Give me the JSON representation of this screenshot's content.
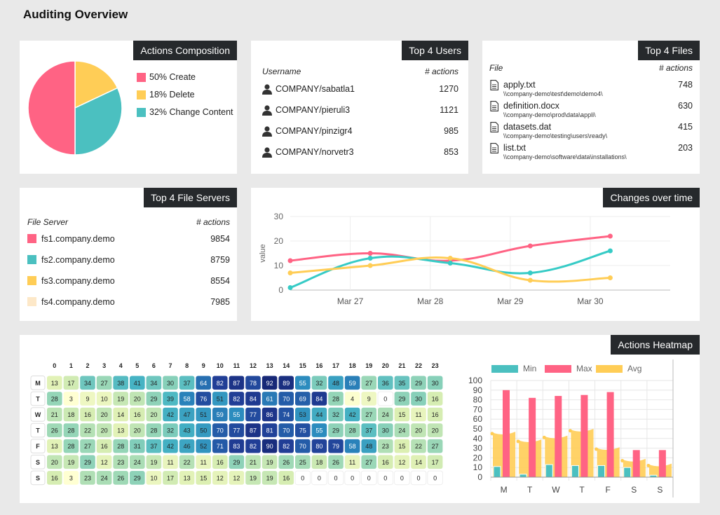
{
  "page": {
    "title": "Auditing Overview"
  },
  "composition": {
    "title": "Actions Composition",
    "items": [
      {
        "label": "50% Create",
        "value": 50,
        "color": "#ff6384"
      },
      {
        "label": "18% Delete",
        "value": 18,
        "color": "#ffcd56"
      },
      {
        "label": "32% Change Content",
        "value": 32,
        "color": "#4bc0c0"
      }
    ]
  },
  "users": {
    "title": "Top 4 Users",
    "col_name": "Username",
    "col_value": "# actions",
    "rows": [
      {
        "name": "COMPANY/sabatla1",
        "value": "1270"
      },
      {
        "name": "COMPANY/pieruli3",
        "value": "1121"
      },
      {
        "name": "COMPANY/pinzigr4",
        "value": "985"
      },
      {
        "name": "COMPANY/norvetr3",
        "value": "853"
      }
    ]
  },
  "files": {
    "title": "Top 4 Files",
    "col_name": "File",
    "col_value": "# actions",
    "rows": [
      {
        "name": "apply.txt",
        "path": "\\\\company-demo\\test\\demo\\demo4\\",
        "value": "748"
      },
      {
        "name": "definition.docx",
        "path": "\\\\company-demo\\prod\\data\\appli\\",
        "value": "630"
      },
      {
        "name": "datasets.dat",
        "path": "\\\\company-demo\\testing\\users\\ready\\",
        "value": "415"
      },
      {
        "name": "list.txt",
        "path": "\\\\company-demo\\software\\data\\installations\\",
        "value": "203"
      }
    ]
  },
  "servers": {
    "title": "Top 4 File Servers",
    "col_name": "File Server",
    "col_value": "# actions",
    "rows": [
      {
        "name": "fs1.company.demo",
        "value": "9854",
        "color": "#ff6384"
      },
      {
        "name": "fs2.company.demo",
        "value": "8759",
        "color": "#4bc0c0"
      },
      {
        "name": "fs3.company.demo",
        "value": "8554",
        "color": "#ffcd56"
      },
      {
        "name": "fs4.company.demo",
        "value": "7985",
        "color": "#fde8c8"
      }
    ]
  },
  "changes": {
    "title": "Changes over time",
    "chart_data": {
      "type": "line",
      "ylabel": "value",
      "ylim": [
        0,
        30
      ],
      "yticks": [
        "0",
        "10",
        "20",
        "30"
      ],
      "x": [
        "Mar 26 18:00",
        "Mar 27 18:00",
        "Mar 28 18:00",
        "Mar 29 18:00",
        "Mar 30 18:00"
      ],
      "xticks": [
        "Mar 27",
        "Mar 28",
        "Mar 29",
        "Mar 30"
      ],
      "series": [
        {
          "color": "#ff6384",
          "values": [
            12,
            15,
            12,
            18,
            22
          ]
        },
        {
          "color": "#36cbc6",
          "values": [
            1,
            13,
            11,
            7,
            16
          ]
        },
        {
          "color": "#ffcd56",
          "values": [
            7,
            10,
            13,
            4,
            5
          ]
        }
      ],
      "grid": true
    }
  },
  "heatmap": {
    "title": "Actions Heatmap",
    "hours": [
      "0",
      "1",
      "2",
      "3",
      "4",
      "5",
      "6",
      "7",
      "8",
      "9",
      "10",
      "11",
      "12",
      "13",
      "14",
      "15",
      "16",
      "17",
      "18",
      "19",
      "20",
      "21",
      "22",
      "23"
    ],
    "days": [
      "M",
      "T",
      "W",
      "T",
      "F",
      "S",
      "S"
    ],
    "values": [
      [
        13,
        17,
        34,
        27,
        38,
        41,
        34,
        30,
        37,
        64,
        82,
        87,
        78,
        92,
        89,
        55,
        32,
        48,
        59,
        27,
        36,
        35,
        29,
        30
      ],
      [
        28,
        3,
        9,
        10,
        19,
        20,
        29,
        39,
        58,
        76,
        51,
        82,
        84,
        61,
        70,
        69,
        84,
        28,
        4,
        9,
        0,
        29,
        30,
        16
      ],
      [
        21,
        18,
        16,
        20,
        14,
        16,
        20,
        42,
        47,
        51,
        59,
        55,
        77,
        86,
        74,
        53,
        44,
        32,
        42,
        27,
        24,
        15,
        11,
        16
      ],
      [
        26,
        28,
        22,
        20,
        13,
        20,
        28,
        32,
        43,
        50,
        70,
        77,
        87,
        81,
        70,
        75,
        55,
        29,
        28,
        37,
        30,
        24,
        20,
        20
      ],
      [
        13,
        28,
        27,
        16,
        28,
        31,
        37,
        42,
        46,
        52,
        71,
        83,
        82,
        90,
        82,
        70,
        80,
        79,
        58,
        48,
        23,
        15,
        22,
        27
      ],
      [
        20,
        19,
        29,
        12,
        23,
        24,
        19,
        11,
        22,
        11,
        16,
        29,
        21,
        19,
        26,
        25,
        18,
        26,
        11,
        27,
        16,
        12,
        14,
        17
      ],
      [
        16,
        3,
        23,
        24,
        26,
        29,
        10,
        17,
        13,
        15,
        12,
        12,
        19,
        19,
        16,
        0,
        0,
        0,
        0,
        0,
        0,
        0,
        0,
        0
      ]
    ]
  },
  "weekly": {
    "chart_data": {
      "type": "bar",
      "categories": [
        "M",
        "T",
        "W",
        "T",
        "F",
        "S",
        "S"
      ],
      "legend": [
        "Min",
        "Max",
        "Avg"
      ],
      "ylim": [
        0,
        100
      ],
      "yticks": [
        "0",
        "10",
        "20",
        "30",
        "40",
        "50",
        "60",
        "70",
        "80",
        "90",
        "100"
      ],
      "series": [
        {
          "name": "Min",
          "color": "#4bc0c0",
          "values": [
            11,
            3,
            13,
            12,
            12,
            10,
            2
          ]
        },
        {
          "name": "Max",
          "color": "#ff6384",
          "values": [
            90,
            82,
            84,
            85,
            88,
            28,
            28
          ]
        },
        {
          "name": "Avg",
          "color": "#ffcd56",
          "values": [
            45,
            37,
            41,
            48,
            29,
            17,
            12
          ]
        }
      ]
    }
  }
}
